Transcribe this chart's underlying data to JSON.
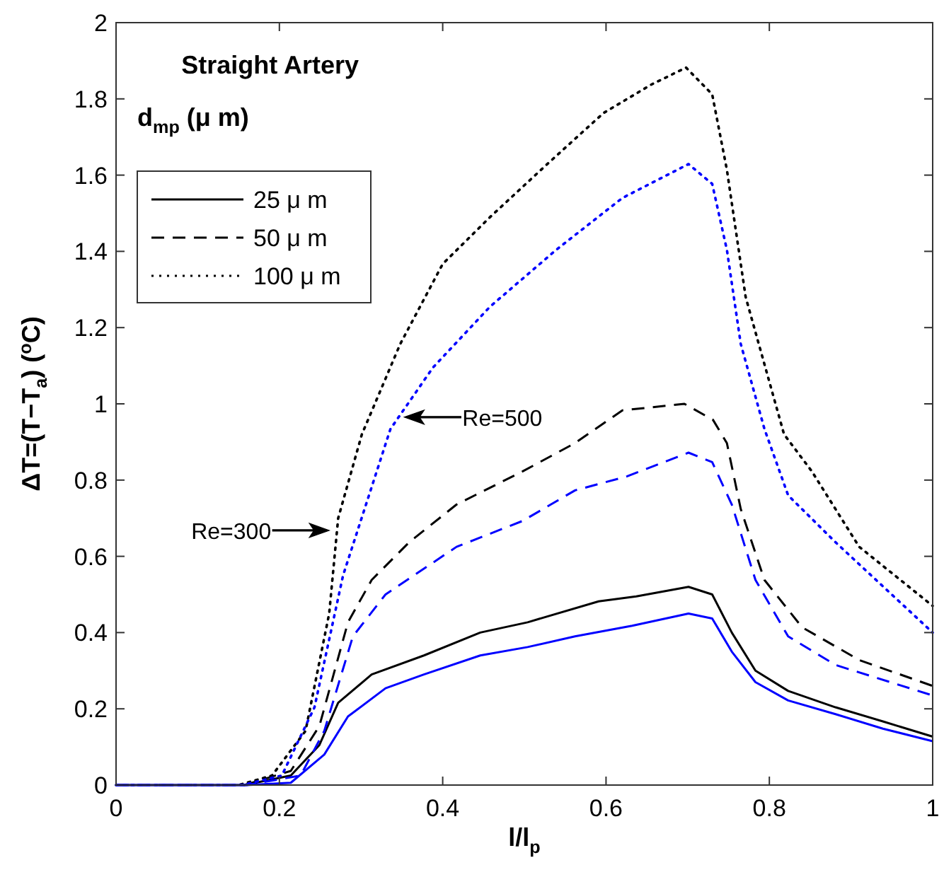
{
  "chart_data": {
    "type": "line",
    "title": "Straight Artery",
    "xlabel": "l/l$_{p}$",
    "ylabel": "ΔT=(T−T$_{a}$) ($^{o}$C)",
    "legend_title": "d$_{mp}$ (μ m)",
    "xlim": [
      0,
      1
    ],
    "ylim": [
      0,
      2
    ],
    "xticks": [
      0,
      0.2,
      0.4,
      0.6,
      0.8,
      1
    ],
    "yticks": [
      0,
      0.2,
      0.4,
      0.6,
      0.8,
      1,
      1.2,
      1.4,
      1.6,
      1.8,
      2
    ],
    "grid": false,
    "legend": "top left",
    "annotations": [
      {
        "text": "Re=300",
        "x": 0.261,
        "y": 0.668
      },
      {
        "text": "Re=500",
        "x": 0.353,
        "y": 0.965
      }
    ],
    "series": [
      {
        "name": "25 μ m",
        "color": "#000000",
        "line_style": "solid",
        "x": [
          0,
          0.157,
          0.214,
          0.249,
          0.272,
          0.313,
          0.377,
          0.446,
          0.504,
          0.591,
          0.637,
          0.701,
          0.73,
          0.754,
          0.783,
          0.823,
          0.881,
          0.939,
          1
        ],
        "values": [
          0,
          0,
          0.025,
          0.105,
          0.216,
          0.29,
          0.34,
          0.4,
          0.427,
          0.482,
          0.495,
          0.52,
          0.5,
          0.4,
          0.3,
          0.247,
          0.204,
          0.167,
          0.127
        ]
      },
      {
        "name": "50 μ m",
        "color": "#000000",
        "line_style": "dashed",
        "x": [
          0,
          0.157,
          0.214,
          0.249,
          0.284,
          0.313,
          0.359,
          0.417,
          0.498,
          0.562,
          0.62,
          0.696,
          0.731,
          0.748,
          0.765,
          0.794,
          0.84,
          0.91,
          1
        ],
        "values": [
          0,
          0,
          0.037,
          0.155,
          0.427,
          0.538,
          0.637,
          0.736,
          0.823,
          0.897,
          0.983,
          1.0,
          0.958,
          0.897,
          0.724,
          0.538,
          0.414,
          0.328,
          0.26
        ]
      },
      {
        "name": "100 μ m",
        "color": "#000000",
        "line_style": "dotted",
        "x": [
          0,
          0.15,
          0.191,
          0.232,
          0.261,
          0.272,
          0.301,
          0.348,
          0.4,
          0.458,
          0.527,
          0.597,
          0.655,
          0.698,
          0.73,
          0.748,
          0.771,
          0.818,
          0.852,
          0.91,
          1
        ],
        "values": [
          0,
          0,
          0.025,
          0.142,
          0.45,
          0.7,
          0.92,
          1.157,
          1.367,
          1.49,
          1.627,
          1.763,
          1.837,
          1.882,
          1.812,
          1.614,
          1.28,
          0.92,
          0.823,
          0.625,
          0.47
        ]
      },
      {
        "color": "#0000ff",
        "line_style": "solid",
        "x": [
          0,
          0.16,
          0.214,
          0.255,
          0.284,
          0.33,
          0.377,
          0.446,
          0.504,
          0.562,
          0.632,
          0.701,
          0.73,
          0.754,
          0.783,
          0.823,
          0.881,
          0.939,
          1
        ],
        "values": [
          0,
          0,
          0.006,
          0.08,
          0.18,
          0.254,
          0.29,
          0.34,
          0.362,
          0.39,
          0.418,
          0.45,
          0.437,
          0.35,
          0.27,
          0.222,
          0.186,
          0.148,
          0.115
        ]
      },
      {
        "color": "#0000ff",
        "line_style": "dashed",
        "x": [
          0,
          0.16,
          0.226,
          0.255,
          0.29,
          0.33,
          0.417,
          0.498,
          0.562,
          0.626,
          0.701,
          0.73,
          0.754,
          0.783,
          0.823,
          0.881,
          1
        ],
        "values": [
          0,
          0,
          0.025,
          0.142,
          0.39,
          0.5,
          0.625,
          0.693,
          0.773,
          0.81,
          0.872,
          0.847,
          0.736,
          0.538,
          0.39,
          0.315,
          0.235
        ]
      },
      {
        "color": "#0000ff",
        "line_style": "dotted",
        "x": [
          0,
          0.155,
          0.203,
          0.243,
          0.278,
          0.336,
          0.388,
          0.458,
          0.539,
          0.62,
          0.701,
          0.73,
          0.748,
          0.765,
          0.794,
          0.823,
          0.881,
          1
        ],
        "values": [
          0,
          0,
          0.025,
          0.204,
          0.55,
          0.934,
          1.095,
          1.255,
          1.404,
          1.54,
          1.629,
          1.577,
          1.404,
          1.157,
          0.934,
          0.76,
          0.637,
          0.4
        ]
      }
    ]
  }
}
